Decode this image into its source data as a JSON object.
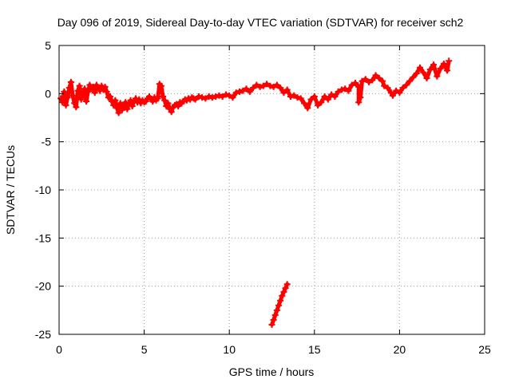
{
  "chart_data": {
    "type": "scatter",
    "title": "Day 096 of 2019, Sidereal Day-to-day VTEC variation (SDTVAR) for receiver sch2",
    "xlabel": "GPS time / hours",
    "ylabel": "SDTVAR / TECUs",
    "xlim": [
      0,
      25
    ],
    "ylim": [
      -25,
      5
    ],
    "xticks": [
      0,
      5,
      10,
      15,
      20,
      25
    ],
    "xtick_labels": [
      "0",
      "5",
      "10",
      "15",
      "20",
      "25"
    ],
    "yticks": [
      5,
      0,
      -5,
      -10,
      -15,
      -20,
      -25
    ],
    "ytick_labels": [
      "5",
      "0",
      "-5",
      "-10",
      "-15",
      "-20",
      "-25"
    ],
    "grid": true,
    "marker": "plus",
    "series": [
      {
        "name": "SDTVAR",
        "color": "#ff0000",
        "points": [
          [
            0.1,
            -0.5
          ],
          [
            0.2,
            -0.9
          ],
          [
            0.3,
            0.2
          ],
          [
            0.4,
            -1.2
          ],
          [
            0.5,
            -0.4
          ],
          [
            0.6,
            0.6
          ],
          [
            0.7,
            1.2
          ],
          [
            0.8,
            -0.2
          ],
          [
            0.9,
            -1.0
          ],
          [
            1.0,
            -1.4
          ],
          [
            1.1,
            0.3
          ],
          [
            1.2,
            0.8
          ],
          [
            1.3,
            -0.6
          ],
          [
            1.4,
            -0.1
          ],
          [
            1.5,
            0.5
          ],
          [
            1.6,
            -0.8
          ],
          [
            1.7,
            0.2
          ],
          [
            1.8,
            0.9
          ],
          [
            1.9,
            0.5
          ],
          [
            2.0,
            0.7
          ],
          [
            2.1,
            0.1
          ],
          [
            2.2,
            0.9
          ],
          [
            2.3,
            0.6
          ],
          [
            2.4,
            0.3
          ],
          [
            2.5,
            0.8
          ],
          [
            2.6,
            0.4
          ],
          [
            2.7,
            0.7
          ],
          [
            2.8,
            0.2
          ],
          [
            2.9,
            -0.4
          ],
          [
            3.0,
            -0.3
          ],
          [
            3.1,
            -0.8
          ],
          [
            3.2,
            -1.2
          ],
          [
            3.3,
            -0.7
          ],
          [
            3.4,
            -1.5
          ],
          [
            3.5,
            -2.0
          ],
          [
            3.6,
            -1.0
          ],
          [
            3.7,
            -1.7
          ],
          [
            3.8,
            -1.2
          ],
          [
            3.9,
            -0.9
          ],
          [
            4.0,
            -1.6
          ],
          [
            4.1,
            -1.1
          ],
          [
            4.2,
            -0.7
          ],
          [
            4.3,
            -1.3
          ],
          [
            4.4,
            -0.8
          ],
          [
            4.5,
            -0.5
          ],
          [
            4.6,
            -0.9
          ],
          [
            4.7,
            -0.6
          ],
          [
            4.8,
            -1.0
          ],
          [
            4.9,
            -0.7
          ],
          [
            5.0,
            -0.9
          ],
          [
            5.1,
            -0.8
          ],
          [
            5.2,
            -0.5
          ],
          [
            5.3,
            -0.3
          ],
          [
            5.4,
            -0.6
          ],
          [
            5.5,
            -0.8
          ],
          [
            5.6,
            -0.4
          ],
          [
            5.7,
            -0.7
          ],
          [
            5.8,
            -0.5
          ],
          [
            5.9,
            1.0
          ],
          [
            6.0,
            0.8
          ],
          [
            6.1,
            -0.3
          ],
          [
            6.2,
            -0.7
          ],
          [
            6.3,
            -1.3
          ],
          [
            6.4,
            -1.0
          ],
          [
            6.5,
            -1.6
          ],
          [
            6.6,
            -1.9
          ],
          [
            6.7,
            -1.4
          ],
          [
            6.8,
            -1.2
          ],
          [
            6.9,
            -1.1
          ],
          [
            7.0,
            -1.3
          ],
          [
            7.1,
            -0.9
          ],
          [
            7.2,
            -1.0
          ],
          [
            7.3,
            -0.8
          ],
          [
            7.4,
            -0.6
          ],
          [
            7.5,
            -0.7
          ],
          [
            7.6,
            -0.5
          ],
          [
            7.7,
            -0.6
          ],
          [
            7.8,
            -0.4
          ],
          [
            7.9,
            -0.5
          ],
          [
            8.0,
            -0.6
          ],
          [
            8.2,
            -0.3
          ],
          [
            8.4,
            -0.4
          ],
          [
            8.6,
            -0.5
          ],
          [
            8.8,
            -0.3
          ],
          [
            9.0,
            -0.4
          ],
          [
            9.2,
            -0.3
          ],
          [
            9.4,
            -0.2
          ],
          [
            9.6,
            -0.3
          ],
          [
            9.8,
            -0.1
          ],
          [
            10.0,
            -0.2
          ],
          [
            10.2,
            -0.4
          ],
          [
            10.4,
            0.1
          ],
          [
            10.6,
            0.2
          ],
          [
            10.8,
            0.3
          ],
          [
            11.0,
            0.5
          ],
          [
            11.2,
            0.2
          ],
          [
            11.4,
            0.6
          ],
          [
            11.6,
            0.9
          ],
          [
            11.8,
            0.7
          ],
          [
            12.0,
            0.8
          ],
          [
            12.2,
            1.0
          ],
          [
            12.4,
            0.8
          ],
          [
            12.6,
            0.7
          ],
          [
            12.8,
            0.9
          ],
          [
            13.0,
            0.6
          ],
          [
            13.2,
            0.1
          ],
          [
            13.4,
            0.4
          ],
          [
            13.6,
            -0.3
          ],
          [
            13.8,
            -0.2
          ],
          [
            14.0,
            -0.4
          ],
          [
            14.2,
            -0.5
          ],
          [
            14.4,
            -1.0
          ],
          [
            14.6,
            -1.5
          ],
          [
            14.8,
            -0.6
          ],
          [
            15.0,
            -0.3
          ],
          [
            15.2,
            -1.2
          ],
          [
            15.4,
            -0.9
          ],
          [
            15.6,
            -0.3
          ],
          [
            15.8,
            -0.6
          ],
          [
            16.0,
            -0.1
          ],
          [
            16.2,
            -0.3
          ],
          [
            16.4,
            0.2
          ],
          [
            16.6,
            0.4
          ],
          [
            16.8,
            0.5
          ],
          [
            17.0,
            0.3
          ],
          [
            17.2,
            0.9
          ],
          [
            17.4,
            1.1
          ],
          [
            17.6,
            0.7
          ],
          [
            17.8,
            1.3
          ],
          [
            17.7,
            -0.4
          ],
          [
            17.6,
            -0.9
          ],
          [
            18.0,
            1.5
          ],
          [
            18.2,
            1.2
          ],
          [
            18.4,
            1.4
          ],
          [
            18.6,
            1.9
          ],
          [
            18.8,
            1.6
          ],
          [
            19.0,
            1.3
          ],
          [
            19.1,
            0.8
          ],
          [
            19.3,
            0.6
          ],
          [
            19.5,
            0.1
          ],
          [
            19.6,
            -0.2
          ],
          [
            19.8,
            0.3
          ],
          [
            20.0,
            0.1
          ],
          [
            20.2,
            0.6
          ],
          [
            20.4,
            0.9
          ],
          [
            20.6,
            1.3
          ],
          [
            20.8,
            1.7
          ],
          [
            21.0,
            2.1
          ],
          [
            21.2,
            2.7
          ],
          [
            21.4,
            2.2
          ],
          [
            21.6,
            1.6
          ],
          [
            21.8,
            2.5
          ],
          [
            22.0,
            3.0
          ],
          [
            22.2,
            1.8
          ],
          [
            22.4,
            2.6
          ],
          [
            22.6,
            3.1
          ],
          [
            22.8,
            2.4
          ],
          [
            22.9,
            3.4
          ],
          [
            12.5,
            -24.0
          ],
          [
            12.6,
            -23.5
          ],
          [
            12.7,
            -23.0
          ],
          [
            12.8,
            -22.5
          ],
          [
            12.9,
            -22.0
          ],
          [
            13.0,
            -21.5
          ],
          [
            13.1,
            -21.0
          ],
          [
            13.2,
            -20.6
          ],
          [
            13.3,
            -20.2
          ],
          [
            13.4,
            -19.8
          ]
        ]
      }
    ]
  }
}
